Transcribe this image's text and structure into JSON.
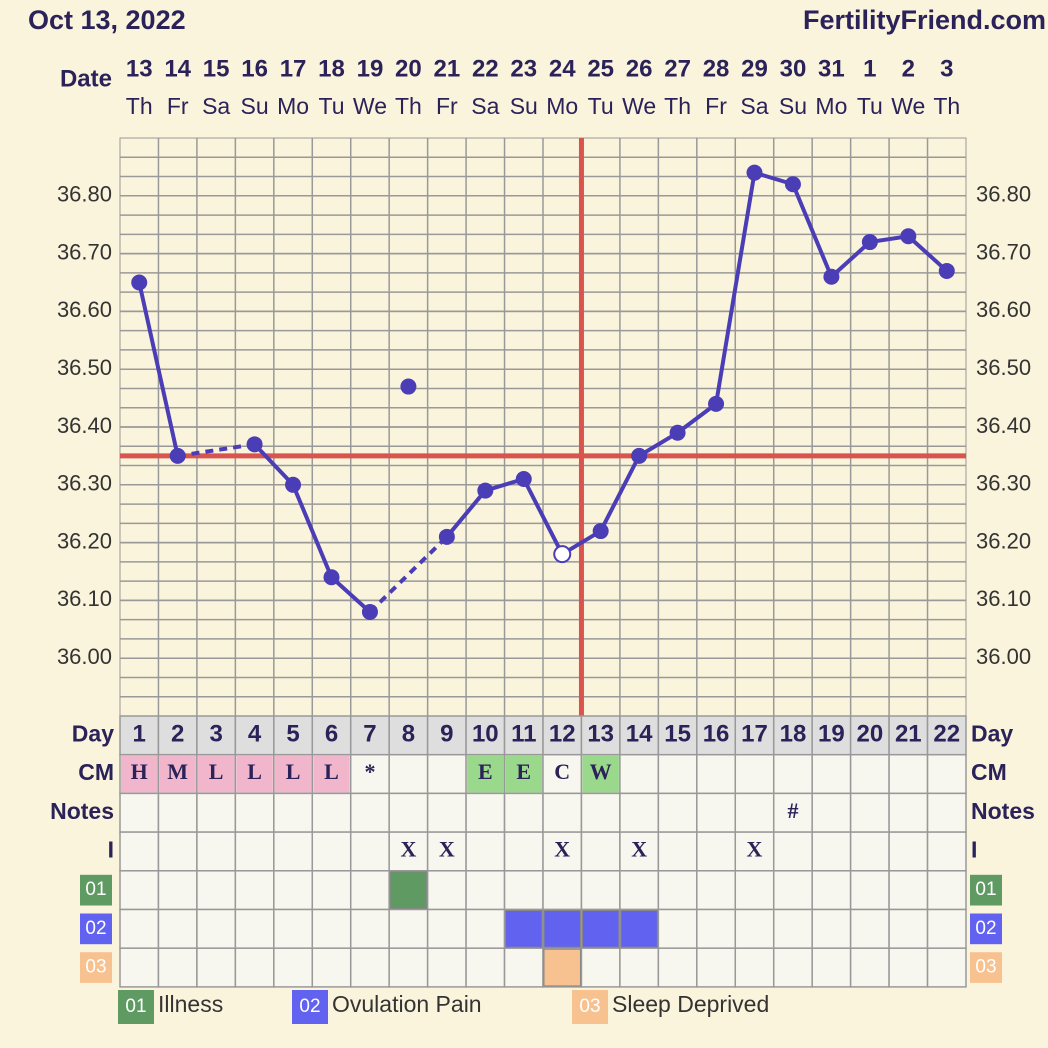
{
  "chart_data": {
    "type": "line",
    "title": "Oct 13, 2022",
    "site": "FertilityFriend.com",
    "x_label": "Date",
    "categories": [
      "13",
      "14",
      "15",
      "16",
      "17",
      "18",
      "19",
      "20",
      "21",
      "22",
      "23",
      "24",
      "25",
      "26",
      "27",
      "28",
      "29",
      "30",
      "31",
      "1",
      "2",
      "3"
    ],
    "weekdays": [
      "Th",
      "Fr",
      "Sa",
      "Su",
      "Mo",
      "Tu",
      "We",
      "Th",
      "Fr",
      "Sa",
      "Su",
      "Mo",
      "Tu",
      "We",
      "Th",
      "Fr",
      "Sa",
      "Su",
      "Mo",
      "Tu",
      "We",
      "Th"
    ],
    "values": [
      36.65,
      36.35,
      null,
      36.37,
      36.3,
      36.14,
      36.08,
      null,
      36.21,
      36.29,
      36.31,
      36.18,
      36.22,
      36.35,
      36.39,
      36.44,
      36.84,
      36.82,
      36.66,
      36.72,
      36.73,
      36.67
    ],
    "excluded_values": [
      null,
      null,
      null,
      null,
      null,
      null,
      null,
      36.47,
      null,
      null,
      null,
      null,
      null,
      null,
      null,
      null,
      null,
      null,
      null,
      null,
      null,
      null
    ],
    "hollow_index": 11,
    "color": "#4a3db5",
    "ylim": [
      35.9,
      36.9
    ],
    "yticks": [
      {
        "value": 36.0,
        "label": "36.00"
      },
      {
        "value": 36.1,
        "label": "36.10"
      },
      {
        "value": 36.2,
        "label": "36.20"
      },
      {
        "value": 36.3,
        "label": "36.30"
      },
      {
        "value": 36.4,
        "label": "36.40"
      },
      {
        "value": 36.5,
        "label": "36.50"
      },
      {
        "value": 36.6,
        "label": "36.60"
      },
      {
        "value": 36.7,
        "label": "36.70"
      },
      {
        "value": 36.8,
        "label": "36.80"
      }
    ],
    "coverline": 36.35,
    "coverline_color": "#d9534f",
    "ovulation_index": 12,
    "grid": true,
    "table": {
      "day_label": "Day",
      "days": [
        "1",
        "2",
        "3",
        "4",
        "5",
        "6",
        "7",
        "8",
        "9",
        "10",
        "11",
        "12",
        "13",
        "14",
        "15",
        "16",
        "17",
        "18",
        "19",
        "20",
        "21",
        "22"
      ],
      "cm_label": "CM",
      "cm": [
        "H",
        "M",
        "L",
        "L",
        "L",
        "L",
        "*",
        null,
        null,
        "E",
        "E",
        "C",
        "W",
        null,
        null,
        null,
        null,
        null,
        null,
        null,
        null,
        null
      ],
      "cm_colors": {
        "H": "#f2b6cc",
        "M": "#f2b6cc",
        "L": "#f2b6cc",
        "E": "#9ad98b",
        "W": "#9ad98b"
      },
      "notes_label": "Notes",
      "notes": [
        null,
        null,
        null,
        null,
        null,
        null,
        null,
        null,
        null,
        null,
        null,
        null,
        null,
        null,
        null,
        null,
        null,
        "#",
        null,
        null,
        null,
        null
      ],
      "intercourse_label": "I",
      "intercourse": [
        null,
        null,
        null,
        null,
        null,
        null,
        null,
        "X",
        "X",
        null,
        null,
        "X",
        null,
        "X",
        null,
        null,
        "X",
        null,
        null,
        null,
        null,
        null
      ]
    },
    "symptoms": [
      {
        "code": "01",
        "name": "Illness",
        "color": "#5f9a63",
        "days": [
          8
        ]
      },
      {
        "code": "02",
        "name": "Ovulation Pain",
        "color": "#6262f0",
        "days": [
          11,
          12,
          13,
          14
        ]
      },
      {
        "code": "03",
        "name": "Sleep Deprived",
        "color": "#f7c290",
        "days": [
          12
        ]
      }
    ]
  }
}
